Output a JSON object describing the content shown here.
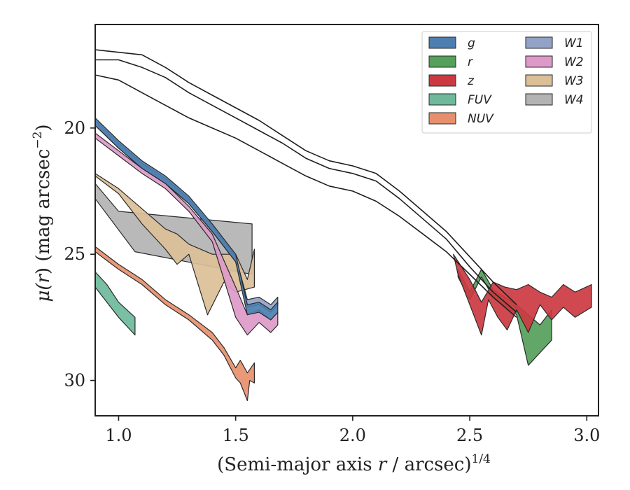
{
  "chart_data": {
    "type": "area",
    "xlabel": "(Semi-major axis r / arcsec)^{1/4}",
    "xlabel_parts": [
      "(Semi-major axis ",
      "r",
      " / arcsec)",
      "1/4"
    ],
    "ylabel": "μ(r) (mag arcsec^{-2})",
    "ylabel_parts": [
      "μ(",
      "r",
      ") (mag arcsec",
      "−2",
      ")"
    ],
    "xlim": [
      0.9,
      3.05
    ],
    "ylim": [
      31.4,
      15.9
    ],
    "y_inverted": true,
    "x_ticks": [
      1.0,
      1.5,
      2.0,
      2.5,
      3.0
    ],
    "x_tick_labels": [
      "1.0",
      "1.5",
      "2.0",
      "2.5",
      "3.0"
    ],
    "y_ticks": [
      20,
      25,
      30
    ],
    "y_tick_labels": [
      "20",
      "25",
      "30"
    ],
    "grid": false,
    "legend_position": "top-right",
    "legend_columns": 2,
    "model_lines": [
      {
        "x": [
          0.9,
          1.0,
          1.1,
          1.2,
          1.3,
          1.4,
          1.5,
          1.6,
          1.7,
          1.8,
          1.9,
          2.0,
          2.1,
          2.2,
          2.3,
          2.4,
          2.5,
          2.6,
          2.7
        ],
        "y": [
          16.9,
          17.0,
          17.1,
          17.6,
          18.2,
          18.7,
          19.2,
          19.7,
          20.3,
          20.9,
          21.3,
          21.5,
          21.8,
          22.5,
          23.3,
          24.1,
          25.1,
          26.1,
          27.0
        ]
      },
      {
        "x": [
          0.9,
          1.0,
          1.1,
          1.2,
          1.3,
          1.4,
          1.5,
          1.6,
          1.7,
          1.8,
          1.9,
          2.0,
          2.1,
          2.2,
          2.3,
          2.4,
          2.5,
          2.6,
          2.7
        ],
        "y": [
          17.3,
          17.3,
          17.6,
          18.0,
          18.6,
          19.1,
          19.6,
          20.1,
          20.6,
          21.2,
          21.6,
          21.8,
          22.1,
          22.8,
          23.6,
          24.4,
          25.5,
          26.5,
          27.3
        ]
      },
      {
        "x": [
          0.9,
          1.0,
          1.1,
          1.2,
          1.3,
          1.4,
          1.5,
          1.6,
          1.7,
          1.8,
          1.9,
          2.0,
          2.1,
          2.2,
          2.3,
          2.4,
          2.5,
          2.6,
          2.7
        ],
        "y": [
          17.9,
          18.1,
          18.6,
          19.1,
          19.6,
          20.0,
          20.4,
          20.9,
          21.4,
          21.9,
          22.3,
          22.5,
          22.9,
          23.5,
          24.2,
          24.9,
          25.8,
          26.7,
          27.5
        ]
      }
    ],
    "series": [
      {
        "name": "g",
        "color": "#4c7fb0",
        "upper": {
          "x": [
            0.9,
            1.0,
            1.1,
            1.2,
            1.3,
            1.4,
            1.5,
            1.55,
            1.6,
            1.65,
            1.68
          ],
          "y": [
            19.6,
            20.5,
            21.3,
            21.9,
            22.7,
            23.8,
            25.0,
            27.0,
            26.9,
            27.2,
            26.9
          ]
        },
        "lower": {
          "x": [
            0.9,
            1.0,
            1.1,
            1.2,
            1.3,
            1.4,
            1.5,
            1.55,
            1.6,
            1.65,
            1.68
          ],
          "y": [
            19.9,
            20.8,
            21.6,
            22.2,
            23.0,
            24.1,
            25.3,
            27.4,
            27.3,
            27.6,
            27.3
          ]
        }
      },
      {
        "name": "r",
        "color": "#55a05a",
        "upper": {
          "x": [
            2.45,
            2.5,
            2.55,
            2.6,
            2.7,
            2.8,
            2.85
          ],
          "y": [
            25.6,
            26.5,
            25.6,
            26.4,
            27.0,
            27.8,
            27.2
          ]
        },
        "lower": {
          "x": [
            2.45,
            2.5,
            2.55,
            2.6,
            2.7,
            2.75,
            2.85
          ],
          "y": [
            25.9,
            26.8,
            25.9,
            26.7,
            27.4,
            29.4,
            28.4
          ]
        }
      },
      {
        "name": "z",
        "color": "#cc3a41",
        "upper": {
          "x": [
            2.43,
            2.5,
            2.55,
            2.6,
            2.65,
            2.7,
            2.75,
            2.8,
            2.85,
            2.9,
            2.95,
            3.02
          ],
          "y": [
            25.0,
            26.0,
            26.9,
            26.1,
            26.3,
            26.4,
            26.2,
            26.5,
            26.7,
            26.2,
            26.5,
            26.2
          ]
        },
        "lower": {
          "x": [
            2.45,
            2.5,
            2.55,
            2.58,
            2.62,
            2.66,
            2.7,
            2.75,
            2.8,
            2.85,
            2.9,
            2.95,
            3.02
          ],
          "y": [
            25.8,
            27.0,
            28.2,
            26.8,
            27.5,
            28.0,
            27.2,
            28.1,
            27.0,
            27.6,
            27.1,
            27.5,
            27.1
          ]
        }
      },
      {
        "name": "FUV",
        "color": "#6fb89c",
        "upper": {
          "x": [
            0.9,
            0.95,
            1.0,
            1.07
          ],
          "y": [
            25.7,
            26.2,
            26.9,
            27.5
          ]
        },
        "lower": {
          "x": [
            0.9,
            0.95,
            1.0,
            1.07
          ],
          "y": [
            26.3,
            26.9,
            27.5,
            28.2
          ]
        }
      },
      {
        "name": "NUV",
        "color": "#e8906d",
        "upper": {
          "x": [
            0.9,
            1.0,
            1.1,
            1.2,
            1.3,
            1.4,
            1.45,
            1.5,
            1.52,
            1.55,
            1.58
          ],
          "y": [
            24.7,
            25.4,
            26.0,
            26.8,
            27.4,
            28.1,
            28.7,
            29.5,
            29.2,
            29.7,
            29.3
          ]
        },
        "lower": {
          "x": [
            0.9,
            1.0,
            1.1,
            1.2,
            1.3,
            1.4,
            1.45,
            1.5,
            1.52,
            1.55,
            1.56,
            1.58
          ],
          "y": [
            24.9,
            25.6,
            26.2,
            27.0,
            27.6,
            28.4,
            29.0,
            29.9,
            30.1,
            30.8,
            30.0,
            30.1
          ]
        }
      },
      {
        "name": "W1",
        "color": "#93a3c6",
        "upper": {
          "x": [
            0.9,
            1.0,
            1.1,
            1.2,
            1.3,
            1.4,
            1.5,
            1.55,
            1.6,
            1.65,
            1.68
          ],
          "y": [
            19.7,
            20.6,
            21.4,
            22.0,
            22.8,
            23.9,
            25.1,
            26.8,
            26.7,
            27.0,
            26.7
          ]
        },
        "lower": {
          "x": [
            0.9,
            1.0,
            1.1,
            1.2,
            1.3,
            1.4,
            1.5,
            1.55,
            1.6,
            1.65,
            1.68
          ],
          "y": [
            19.9,
            20.8,
            21.6,
            22.2,
            23.0,
            24.1,
            25.3,
            27.1,
            27.0,
            27.3,
            27.0
          ]
        }
      },
      {
        "name": "W2",
        "color": "#dd9ac8",
        "upper": {
          "x": [
            0.9,
            1.0,
            1.1,
            1.2,
            1.3,
            1.4,
            1.5,
            1.55,
            1.6,
            1.65,
            1.68
          ],
          "y": [
            20.2,
            20.9,
            21.6,
            22.2,
            23.1,
            24.2,
            26.3,
            27.4,
            27.2,
            27.6,
            27.3
          ]
        },
        "lower": {
          "x": [
            0.9,
            1.0,
            1.1,
            1.2,
            1.3,
            1.4,
            1.5,
            1.55,
            1.6,
            1.65,
            1.68
          ],
          "y": [
            20.4,
            21.1,
            21.8,
            22.4,
            23.3,
            24.5,
            27.5,
            28.2,
            27.7,
            28.1,
            27.8
          ]
        }
      },
      {
        "name": "W3",
        "color": "#dbbf97",
        "upper": {
          "x": [
            0.9,
            1.0,
            1.1,
            1.2,
            1.25,
            1.3,
            1.4,
            1.5,
            1.55,
            1.58
          ],
          "y": [
            21.8,
            22.4,
            23.2,
            24.0,
            24.2,
            24.6,
            25.0,
            25.0,
            26.0,
            24.8
          ]
        },
        "lower": {
          "x": [
            0.9,
            1.0,
            1.1,
            1.2,
            1.25,
            1.3,
            1.38,
            1.45,
            1.5,
            1.58
          ],
          "y": [
            21.9,
            22.6,
            23.8,
            24.8,
            25.4,
            25.0,
            27.4,
            26.1,
            26.5,
            26.3
          ]
        }
      },
      {
        "name": "W4",
        "color": "#b3b3b3",
        "upper": {
          "x": [
            0.9,
            1.0,
            1.57
          ],
          "y": [
            22.2,
            23.3,
            23.8
          ]
        },
        "lower": {
          "x": [
            0.9,
            1.07,
            1.57
          ],
          "y": [
            22.8,
            24.9,
            25.8
          ]
        }
      }
    ]
  }
}
